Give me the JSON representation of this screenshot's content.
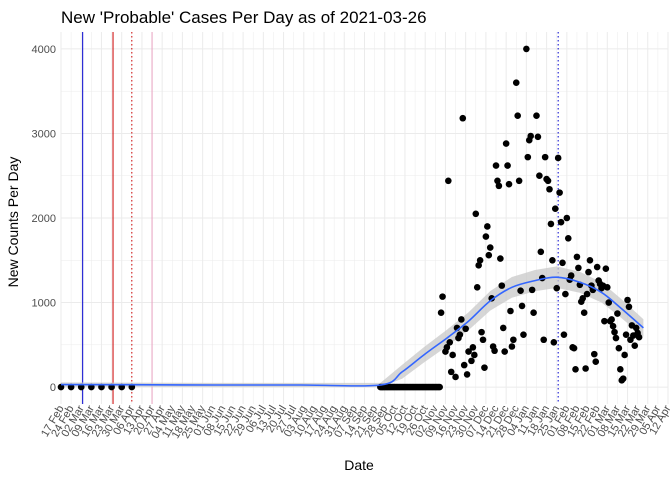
{
  "chart_data": {
    "type": "scatter",
    "title": "New 'Probable' Cases Per Day as of 2021-03-26",
    "xlabel": "Date",
    "ylabel": "New Counts Per Day",
    "x_range": [
      "2020-02-17",
      "2021-04-12"
    ],
    "ylim": [
      -200,
      4200
    ],
    "y_ticks": [
      0,
      1000,
      2000,
      3000,
      4000
    ],
    "x_ticks": [
      "17 Feb",
      "02 Mar",
      "16 Mar",
      "30 Mar",
      "13 Apr",
      "27 Apr",
      "11 May",
      "25 May",
      "08 Jun",
      "22 Jun",
      "06 Jul",
      "20 Jul",
      "03 Aug",
      "17 Aug",
      "31 Aug",
      "14 Sep",
      "28 Sep",
      "12 Oct",
      "26 Oct",
      "09 Nov",
      "23 Nov",
      "07 Dec",
      "21 Dec",
      "04 Jan",
      "18 Jan",
      "01 Feb",
      "15 Feb",
      "01 Mar",
      "15 Mar",
      "29 Mar",
      "12 Apr"
    ],
    "x_ticks_secondary": [
      "24 Feb",
      "09 Mar",
      "23 Mar",
      "06 Apr",
      "20 Apr",
      "04 May",
      "18 May",
      "01 Jun",
      "15 Jun",
      "29 Jun",
      "13 Jul",
      "27 Jul",
      "10 Aug",
      "24 Aug",
      "07 Sep",
      "21 Sep",
      "05 Oct",
      "19 Oct",
      "02 Nov",
      "16 Nov",
      "30 Nov",
      "14 Dec",
      "28 Dec",
      "11 Jan",
      "25 Jan",
      "08 Feb",
      "22 Feb",
      "08 Mar",
      "22 Mar",
      "05 Apr"
    ],
    "grid": true,
    "vlines": [
      {
        "date": "2020-03-03",
        "color": "#0000cc",
        "style": "solid"
      },
      {
        "date": "2020-03-24",
        "color": "#cc0000",
        "style": "solid"
      },
      {
        "date": "2020-04-06",
        "color": "#cc0000",
        "style": "dotted"
      },
      {
        "date": "2020-04-20",
        "color": "#e8a0c0",
        "style": "solid"
      },
      {
        "date": "2021-01-26",
        "color": "#0000cc",
        "style": "dotted"
      }
    ],
    "series": [
      {
        "name": "early",
        "points": [
          [
            "2020-02-17",
            0
          ],
          [
            "2020-02-24",
            0
          ],
          [
            "2020-03-02",
            0
          ],
          [
            "2020-03-09",
            0
          ],
          [
            "2020-03-16",
            0
          ],
          [
            "2020-03-23",
            0
          ],
          [
            "2020-03-30",
            0
          ],
          [
            "2020-04-06",
            0
          ]
        ]
      },
      {
        "name": "fall-winter",
        "points": [
          [
            "2020-11-06",
            880
          ],
          [
            "2020-11-07",
            1070
          ],
          [
            "2020-11-09",
            420
          ],
          [
            "2020-11-10",
            470
          ],
          [
            "2020-11-11",
            2440
          ],
          [
            "2020-11-12",
            530
          ],
          [
            "2020-11-13",
            180
          ],
          [
            "2020-11-14",
            380
          ],
          [
            "2020-11-16",
            120
          ],
          [
            "2020-11-17",
            700
          ],
          [
            "2020-11-18",
            580
          ],
          [
            "2020-11-19",
            620
          ],
          [
            "2020-11-20",
            800
          ],
          [
            "2020-11-21",
            3180
          ],
          [
            "2020-11-22",
            260
          ],
          [
            "2020-11-23",
            690
          ],
          [
            "2020-11-24",
            150
          ],
          [
            "2020-11-25",
            420
          ],
          [
            "2020-11-27",
            310
          ],
          [
            "2020-11-28",
            470
          ],
          [
            "2020-11-29",
            380
          ],
          [
            "2020-11-30",
            2050
          ],
          [
            "2020-12-01",
            1180
          ],
          [
            "2020-12-02",
            1440
          ],
          [
            "2020-12-03",
            1500
          ],
          [
            "2020-12-04",
            650
          ],
          [
            "2020-12-05",
            560
          ],
          [
            "2020-12-06",
            230
          ],
          [
            "2020-12-07",
            1780
          ],
          [
            "2020-12-08",
            1900
          ],
          [
            "2020-12-09",
            1560
          ],
          [
            "2020-12-10",
            1650
          ],
          [
            "2020-12-11",
            1050
          ],
          [
            "2020-12-12",
            480
          ],
          [
            "2020-12-13",
            430
          ],
          [
            "2020-12-14",
            2620
          ],
          [
            "2020-12-15",
            2440
          ],
          [
            "2020-12-16",
            2380
          ],
          [
            "2020-12-17",
            1520
          ],
          [
            "2020-12-18",
            1200
          ],
          [
            "2020-12-19",
            700
          ],
          [
            "2020-12-20",
            420
          ],
          [
            "2020-12-21",
            2880
          ],
          [
            "2020-12-22",
            2620
          ],
          [
            "2020-12-23",
            2400
          ],
          [
            "2020-12-24",
            900
          ],
          [
            "2020-12-25",
            480
          ],
          [
            "2020-12-26",
            560
          ],
          [
            "2020-12-28",
            3600
          ],
          [
            "2020-12-29",
            3210
          ],
          [
            "2020-12-30",
            2440
          ],
          [
            "2020-12-31",
            1140
          ],
          [
            "2021-01-01",
            960
          ],
          [
            "2021-01-02",
            620
          ],
          [
            "2021-01-04",
            4000
          ],
          [
            "2021-01-05",
            2720
          ],
          [
            "2021-01-06",
            2920
          ],
          [
            "2021-01-07",
            2970
          ],
          [
            "2021-01-08",
            1150
          ],
          [
            "2021-01-09",
            880
          ],
          [
            "2021-01-11",
            3210
          ],
          [
            "2021-01-12",
            2960
          ],
          [
            "2021-01-13",
            2500
          ],
          [
            "2021-01-14",
            1600
          ],
          [
            "2021-01-15",
            1290
          ],
          [
            "2021-01-16",
            560
          ],
          [
            "2021-01-17",
            2720
          ],
          [
            "2021-01-18",
            2460
          ],
          [
            "2021-01-19",
            2440
          ],
          [
            "2021-01-20",
            2340
          ],
          [
            "2021-01-21",
            1930
          ],
          [
            "2021-01-22",
            1500
          ],
          [
            "2021-01-23",
            530
          ],
          [
            "2021-01-24",
            2110
          ],
          [
            "2021-01-25",
            1170
          ],
          [
            "2021-01-26",
            2710
          ],
          [
            "2021-01-27",
            2300
          ],
          [
            "2021-01-28",
            1950
          ],
          [
            "2021-01-29",
            1470
          ],
          [
            "2021-01-30",
            620
          ],
          [
            "2021-01-31",
            1100
          ],
          [
            "2021-02-01",
            2000
          ],
          [
            "2021-02-02",
            1760
          ],
          [
            "2021-02-03",
            1270
          ],
          [
            "2021-02-04",
            1320
          ],
          [
            "2021-02-05",
            470
          ],
          [
            "2021-02-06",
            460
          ],
          [
            "2021-02-07",
            210
          ],
          [
            "2021-02-08",
            1540
          ],
          [
            "2021-02-09",
            1410
          ],
          [
            "2021-02-10",
            1210
          ],
          [
            "2021-02-11",
            1010
          ],
          [
            "2021-02-12",
            1050
          ],
          [
            "2021-02-13",
            880
          ],
          [
            "2021-02-14",
            220
          ],
          [
            "2021-02-15",
            1100
          ],
          [
            "2021-02-16",
            1360
          ],
          [
            "2021-02-17",
            1500
          ],
          [
            "2021-02-18",
            1200
          ],
          [
            "2021-02-19",
            1150
          ],
          [
            "2021-02-20",
            390
          ],
          [
            "2021-02-21",
            300
          ],
          [
            "2021-02-22",
            1420
          ],
          [
            "2021-02-23",
            1260
          ],
          [
            "2021-02-24",
            1220
          ],
          [
            "2021-02-25",
            1170
          ],
          [
            "2021-02-26",
            1200
          ],
          [
            "2021-02-27",
            780
          ],
          [
            "2021-02-28",
            1400
          ],
          [
            "2021-03-01",
            1180
          ],
          [
            "2021-03-02",
            1000
          ],
          [
            "2021-03-03",
            780
          ],
          [
            "2021-03-04",
            800
          ],
          [
            "2021-03-05",
            720
          ],
          [
            "2021-03-06",
            650
          ],
          [
            "2021-03-07",
            580
          ],
          [
            "2021-03-08",
            870
          ],
          [
            "2021-03-09",
            460
          ],
          [
            "2021-03-10",
            210
          ],
          [
            "2021-03-11",
            80
          ],
          [
            "2021-03-12",
            100
          ],
          [
            "2021-03-13",
            380
          ],
          [
            "2021-03-14",
            620
          ],
          [
            "2021-03-15",
            1030
          ],
          [
            "2021-03-16",
            950
          ],
          [
            "2021-03-17",
            560
          ],
          [
            "2021-03-18",
            730
          ],
          [
            "2021-03-19",
            610
          ],
          [
            "2021-03-20",
            490
          ],
          [
            "2021-03-21",
            700
          ],
          [
            "2021-03-22",
            640
          ],
          [
            "2021-03-23",
            590
          ]
        ]
      }
    ],
    "smooth": [
      [
        "2020-02-17",
        30
      ],
      [
        "2020-04-01",
        28
      ],
      [
        "2020-06-01",
        25
      ],
      [
        "2020-08-01",
        25
      ],
      [
        "2020-09-25",
        25
      ],
      [
        "2020-10-10",
        180
      ],
      [
        "2020-10-25",
        380
      ],
      [
        "2020-11-10",
        580
      ],
      [
        "2020-11-25",
        780
      ],
      [
        "2020-12-10",
        1020
      ],
      [
        "2020-12-25",
        1180
      ],
      [
        "2021-01-10",
        1260
      ],
      [
        "2021-01-25",
        1300
      ],
      [
        "2021-02-10",
        1240
      ],
      [
        "2021-02-25",
        1120
      ],
      [
        "2021-03-10",
        940
      ],
      [
        "2021-03-26",
        700
      ]
    ]
  }
}
